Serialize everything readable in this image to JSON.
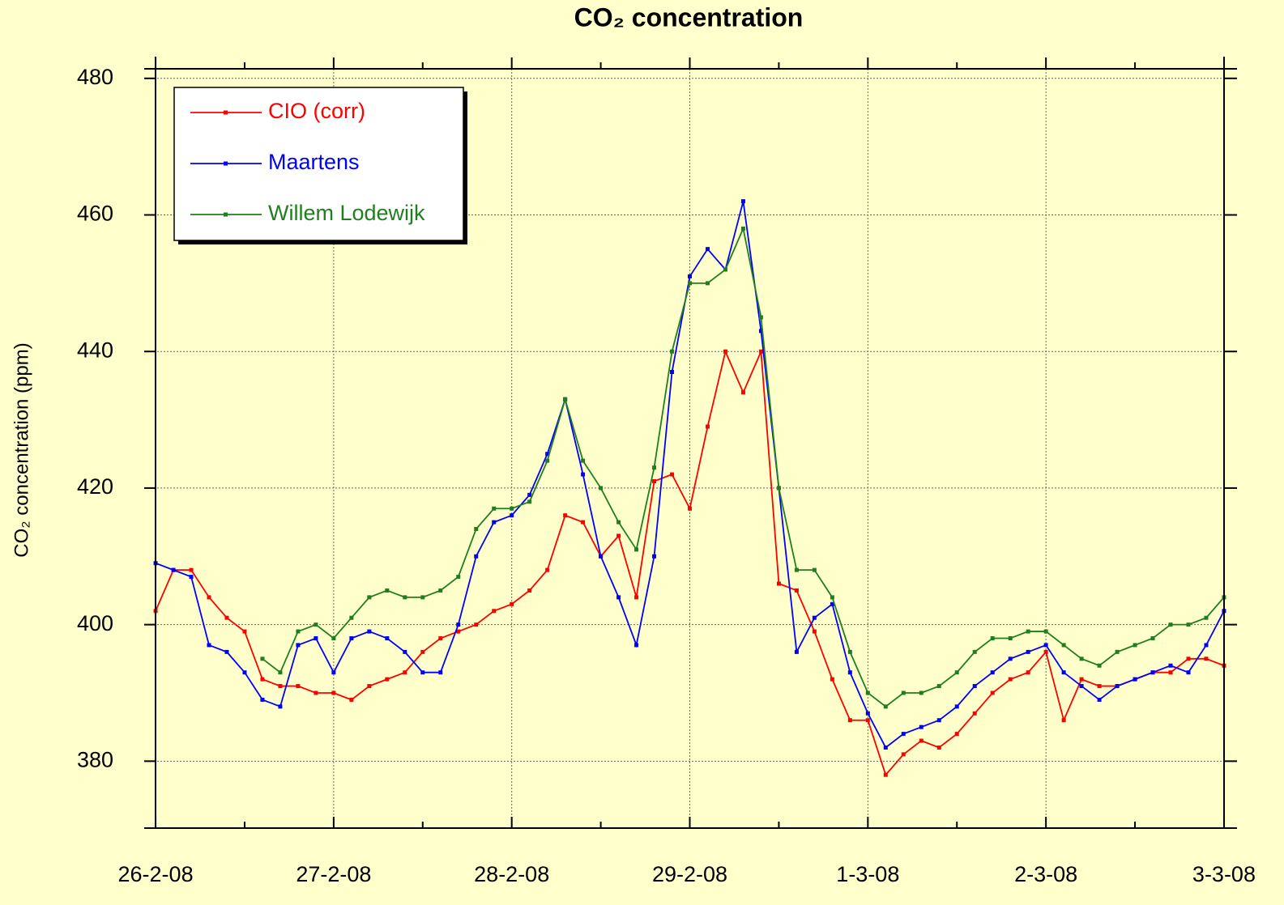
{
  "chart_data": {
    "type": "line",
    "title": "CO₂ concentration",
    "y_label": "CO₂ concentration (ppm)",
    "x": [
      0,
      0.1,
      0.2,
      0.3,
      0.4,
      0.5,
      0.6,
      0.7,
      0.8,
      0.9,
      1,
      1.1,
      1.2,
      1.3,
      1.4,
      1.5,
      1.6,
      1.7,
      1.8,
      1.9,
      2,
      2.1,
      2.2,
      2.3,
      2.4,
      2.5,
      2.6,
      2.7,
      2.8,
      2.9,
      3,
      3.1,
      3.2,
      3.3,
      3.4,
      3.5,
      3.6,
      3.7,
      3.8,
      3.9,
      4,
      4.1,
      4.2,
      4.3,
      4.4,
      4.5,
      4.6,
      4.7,
      4.8,
      4.9,
      5,
      5.1,
      5.2,
      5.3,
      5.4,
      5.5,
      5.6,
      5.7,
      5.8,
      5.9,
      6
    ],
    "series": [
      {
        "name": "CIO (corr)",
        "color": "#ff0000",
        "values": [
          402,
          408,
          408,
          404,
          401,
          399,
          392,
          391,
          391,
          390,
          390,
          389,
          391,
          392,
          393,
          396,
          398,
          399,
          400,
          402,
          403,
          405,
          408,
          416,
          415,
          410,
          413,
          404,
          421,
          422,
          417,
          429,
          440,
          434,
          440,
          406,
          405,
          399,
          392,
          386,
          386,
          378,
          381,
          383,
          382,
          384,
          387,
          390,
          392,
          393,
          396,
          386,
          392,
          391,
          391,
          392,
          393,
          393,
          395,
          395,
          394
        ]
      },
      {
        "name": "Maartens",
        "color": "#0000ff",
        "values": [
          409,
          408,
          407,
          397,
          396,
          393,
          389,
          388,
          397,
          398,
          393,
          398,
          399,
          398,
          396,
          393,
          393,
          400,
          410,
          415,
          416,
          419,
          425,
          433,
          422,
          410,
          404,
          397,
          410,
          437,
          451,
          455,
          452,
          462,
          443,
          420,
          396,
          401,
          403,
          393,
          387,
          382,
          384,
          385,
          386,
          388,
          391,
          393,
          395,
          396,
          397,
          393,
          391,
          389,
          391,
          392,
          393,
          394,
          393,
          397,
          402
        ]
      },
      {
        "name": "Willem Lodewijk",
        "color": "#1f7f1f",
        "values": [
          null,
          null,
          null,
          null,
          null,
          null,
          395,
          393,
          399,
          400,
          398,
          401,
          404,
          405,
          404,
          404,
          405,
          407,
          414,
          417,
          417,
          418,
          424,
          433,
          424,
          420,
          415,
          411,
          423,
          440,
          450,
          450,
          452,
          458,
          445,
          420,
          408,
          408,
          404,
          396,
          390,
          388,
          390,
          390,
          391,
          393,
          396,
          398,
          398,
          399,
          399,
          397,
          395,
          394,
          396,
          397,
          398,
          400,
          400,
          401,
          404
        ]
      }
    ],
    "xlim": [
      -0.064,
      6.073
    ],
    "xticks": [
      {
        "value": 0,
        "label": "26-2-08"
      },
      {
        "value": 1,
        "label": "27-2-08"
      },
      {
        "value": 2,
        "label": "28-2-08"
      },
      {
        "value": 3,
        "label": "29-2-08"
      },
      {
        "value": 4,
        "label": "1-3-08"
      },
      {
        "value": 5,
        "label": "2-3-08"
      },
      {
        "value": 6,
        "label": "3-3-08"
      }
    ],
    "xminorticks": [
      0.5,
      1.5,
      2.5,
      3.5,
      4.5,
      5.5
    ],
    "ylim": [
      370.2,
      481.4
    ],
    "yticks": [
      380,
      400,
      420,
      440,
      460,
      480
    ],
    "grid": true,
    "legend": "upper left"
  }
}
